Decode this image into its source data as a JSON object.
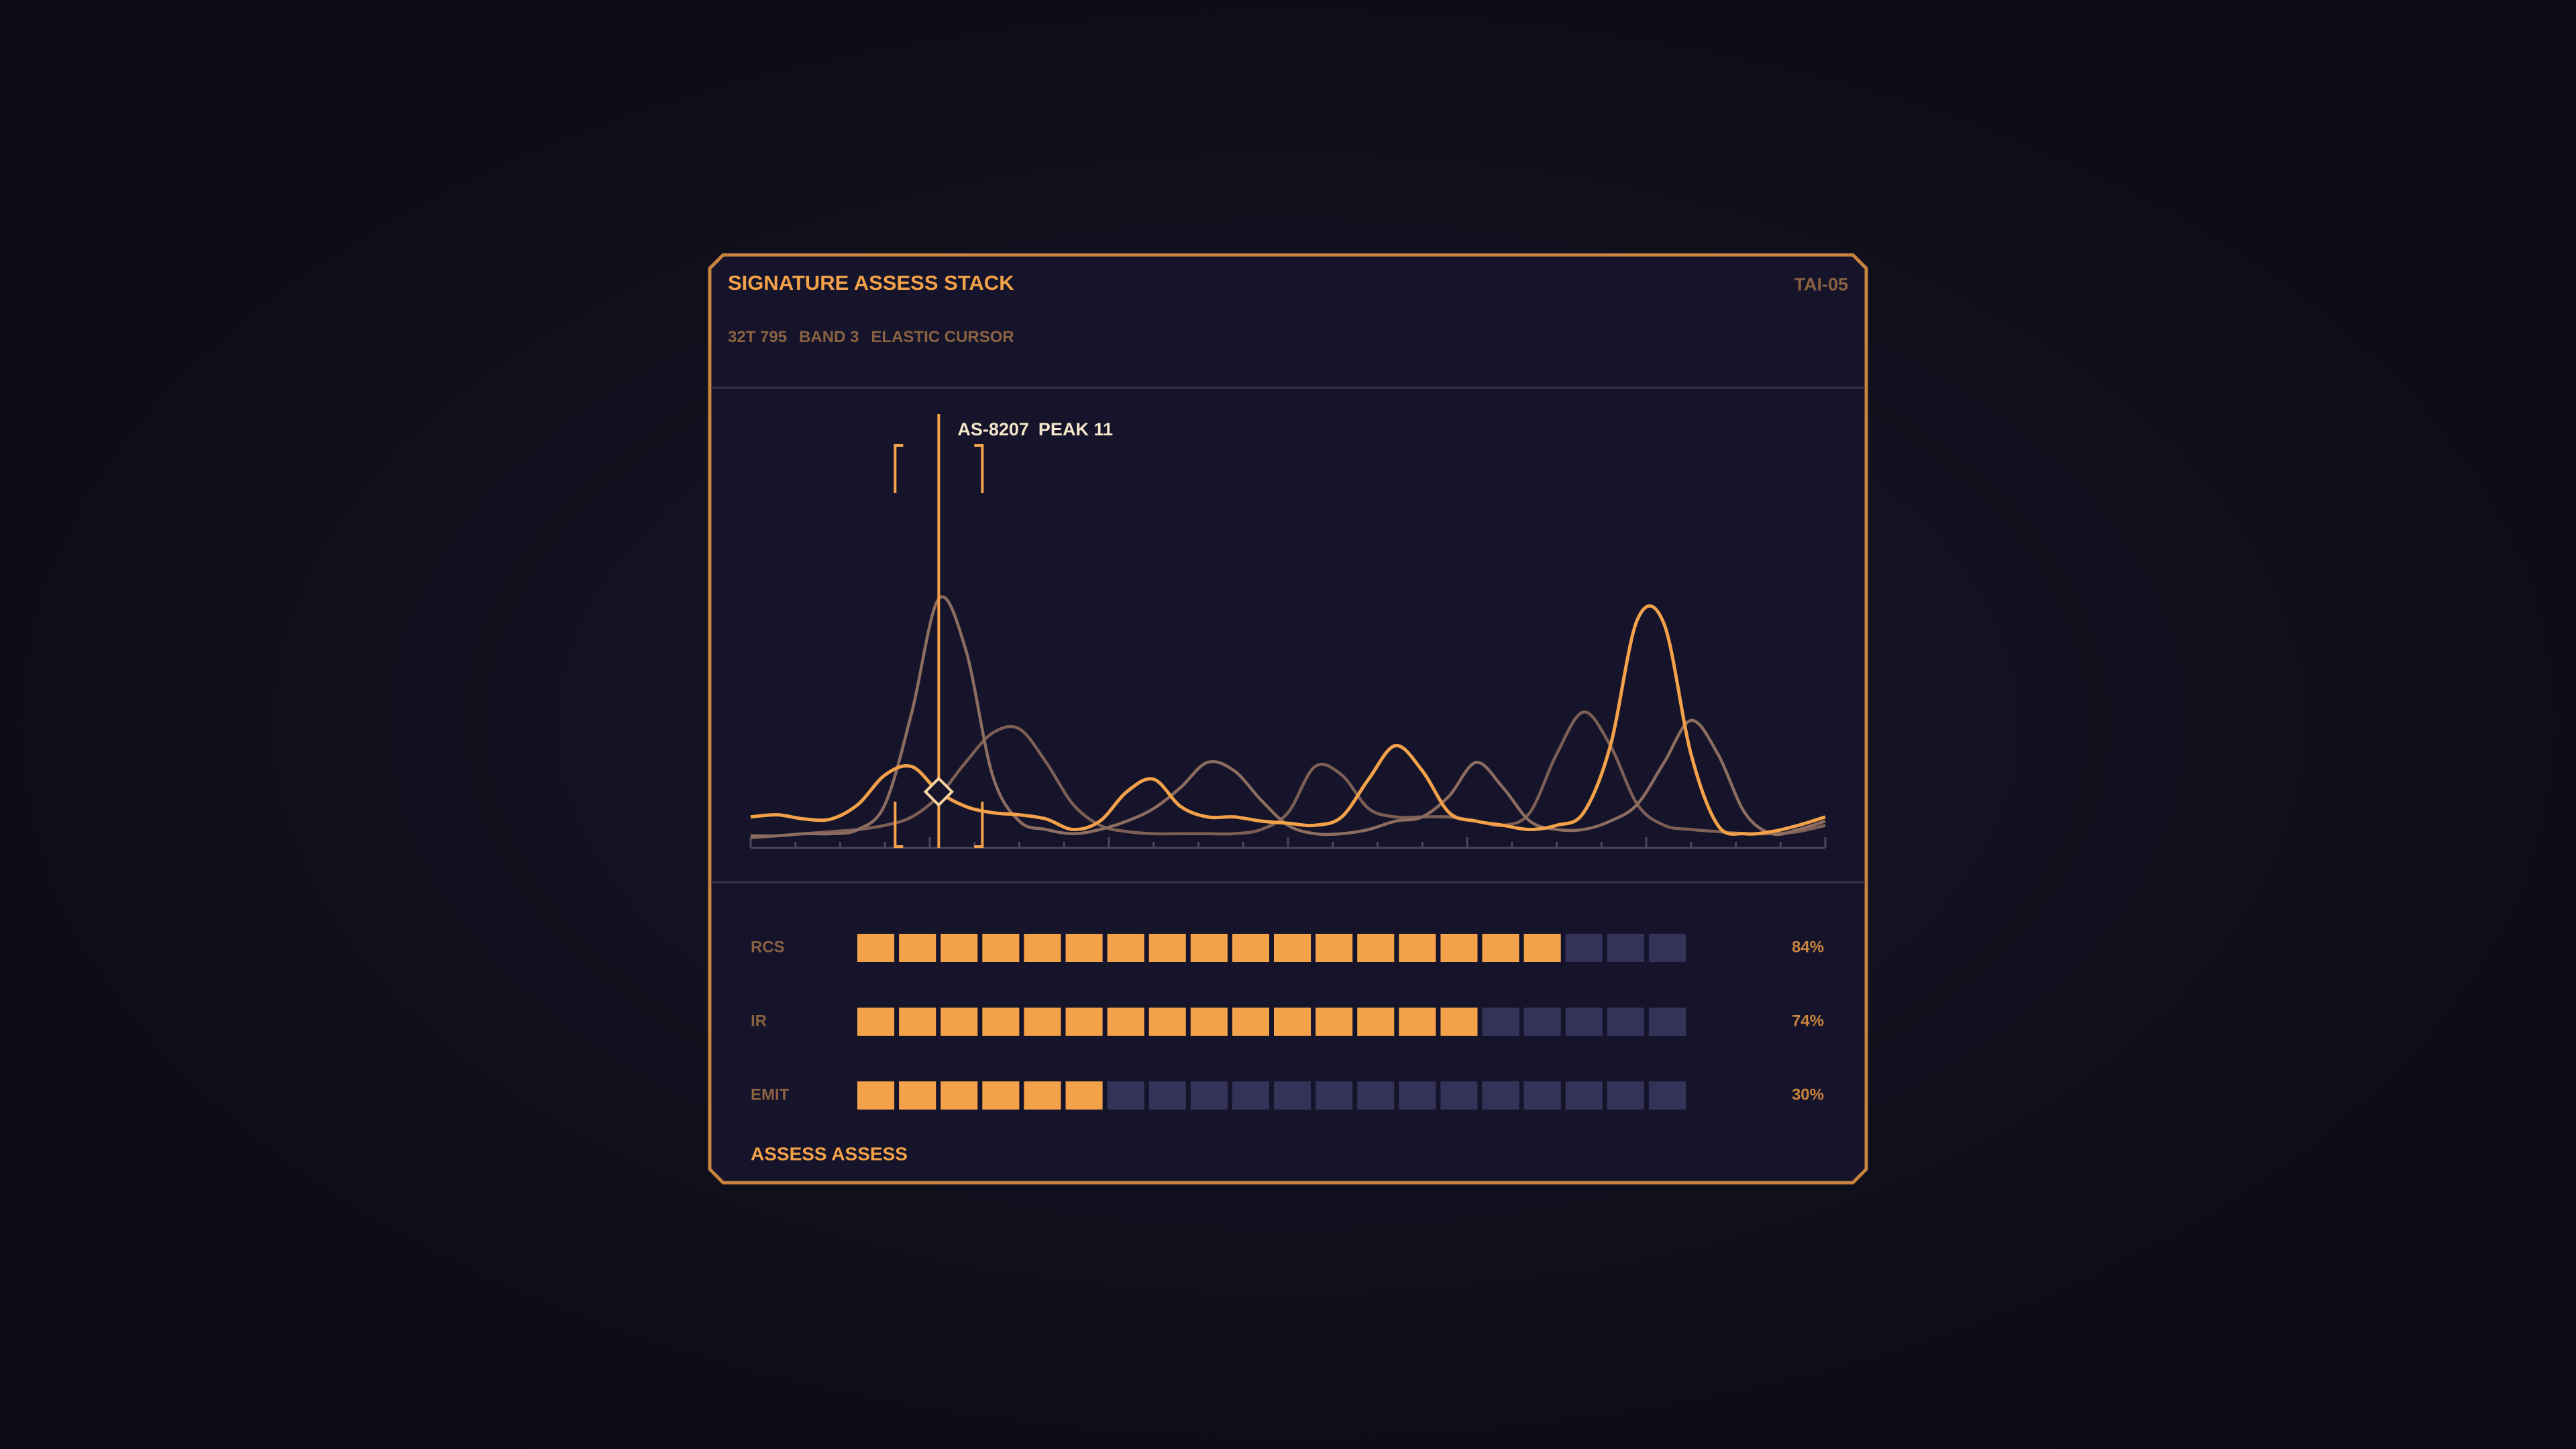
{
  "header": {
    "title": "SIGNATURE ASSESS STACK",
    "code": "TAI-05",
    "subtitle": [
      "32T 795",
      "BAND 3",
      "ELASTIC CURSOR"
    ]
  },
  "chart_data": {
    "type": "line",
    "x": [
      0,
      1,
      2,
      3,
      4,
      5,
      6,
      7,
      8,
      9,
      10,
      11,
      12,
      13,
      14,
      15,
      16,
      17,
      18,
      19,
      20,
      21,
      22,
      23,
      24,
      25,
      26,
      27,
      28,
      29,
      30,
      31,
      32,
      33,
      34,
      35,
      36,
      37,
      38,
      39,
      40
    ],
    "xlim": [
      0,
      40
    ],
    "ylim": [
      0,
      100
    ],
    "series": [
      {
        "color": "#f4a24a",
        "values": [
          5,
          5.5,
          4.5,
          4.5,
          8,
          15,
          17,
          11,
          7.5,
          6,
          5.5,
          4.5,
          2,
          4,
          11,
          14,
          7.5,
          5,
          5,
          4,
          3.5,
          3,
          5,
          14,
          22,
          16,
          6,
          4,
          3,
          2,
          3,
          6,
          22,
          52,
          51,
          20,
          3,
          1,
          1.5,
          3,
          5
        ]
      },
      {
        "color": "#8c6d60",
        "values": [
          0.5,
          0.5,
          1,
          1,
          2,
          8,
          30,
          57,
          45,
          15,
          4,
          2,
          1,
          2,
          4,
          7,
          12,
          18,
          16,
          9,
          3,
          1,
          1,
          2,
          4,
          5,
          10,
          18,
          12,
          4,
          2,
          2,
          4,
          8,
          18,
          28,
          20,
          6,
          1,
          2,
          4
        ]
      },
      {
        "color": "#7d5f55",
        "values": [
          0,
          0.5,
          1,
          1.5,
          2,
          3,
          5,
          10,
          18,
          25,
          26,
          18,
          8,
          3,
          1.5,
          1,
          1,
          1,
          1,
          2,
          6,
          17,
          15,
          7,
          5,
          5,
          5,
          4,
          3,
          6,
          20,
          30,
          22,
          8,
          3,
          2,
          1.5,
          1,
          1,
          1.5,
          3
        ]
      }
    ],
    "cursor": {
      "x": 7,
      "series": 0,
      "target": "AS-8207",
      "peak": "PEAK 11",
      "color": "#f4a24a"
    }
  },
  "meters": {
    "categories": [
      "RCS",
      "IR",
      "EMIT"
    ],
    "values": [
      84,
      74,
      30
    ],
    "value_labels": [
      "84%",
      "74%",
      "30%"
    ],
    "xlim": [
      0,
      100
    ],
    "color": "#f4a24a",
    "empty_color": "#35325a"
  },
  "footer": "ASSESS ASSESS"
}
